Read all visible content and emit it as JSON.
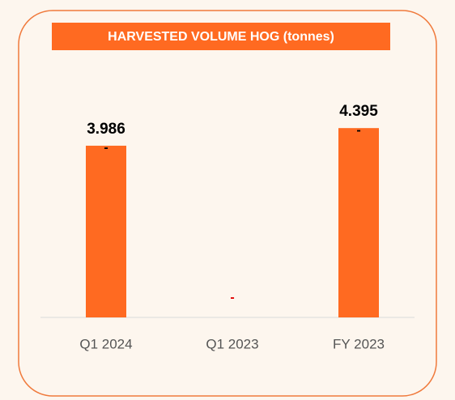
{
  "chart_data": {
    "type": "bar",
    "title": "HARVESTED VOLUME HOG (tonnes)",
    "categories": [
      "Q1 2024",
      "Q1 2023",
      "FY 2023"
    ],
    "values": [
      3.986,
      null,
      4.395
    ],
    "change_labels": [
      "-",
      "-",
      "-"
    ],
    "color": "#ff6a21",
    "ylim": [
      0,
      4.5
    ]
  }
}
